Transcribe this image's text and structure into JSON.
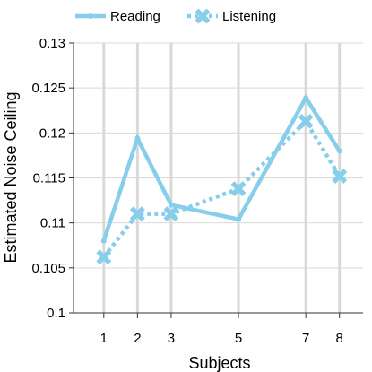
{
  "chart_data": {
    "type": "line",
    "title": "",
    "xlabel": "Subjects",
    "ylabel": "Estimated Noise Ceiling",
    "x": [
      1,
      2,
      3,
      5,
      7,
      8
    ],
    "xticks": [
      "1",
      "2",
      "3",
      "5",
      "7",
      "8"
    ],
    "xlim": [
      0.1,
      8.7
    ],
    "ylim": [
      0.1,
      0.13
    ],
    "yticks": [
      "0.1",
      "0.105",
      "0.11",
      "0.115",
      "0.12",
      "0.125",
      "0.13"
    ],
    "grid": "vertical and horizontal",
    "legend_position": "top",
    "series": [
      {
        "name": "Reading",
        "values": [
          0.108,
          0.1194,
          0.112,
          0.1104,
          0.1239,
          0.118
        ],
        "color": "#87ceeb",
        "line_style": "solid",
        "marker": "dot"
      },
      {
        "name": "Listening",
        "values": [
          0.1062,
          0.111,
          0.111,
          0.1138,
          0.1213,
          0.1152
        ],
        "color": "#87ceeb",
        "line_style": "dotted",
        "marker": "x"
      }
    ]
  }
}
